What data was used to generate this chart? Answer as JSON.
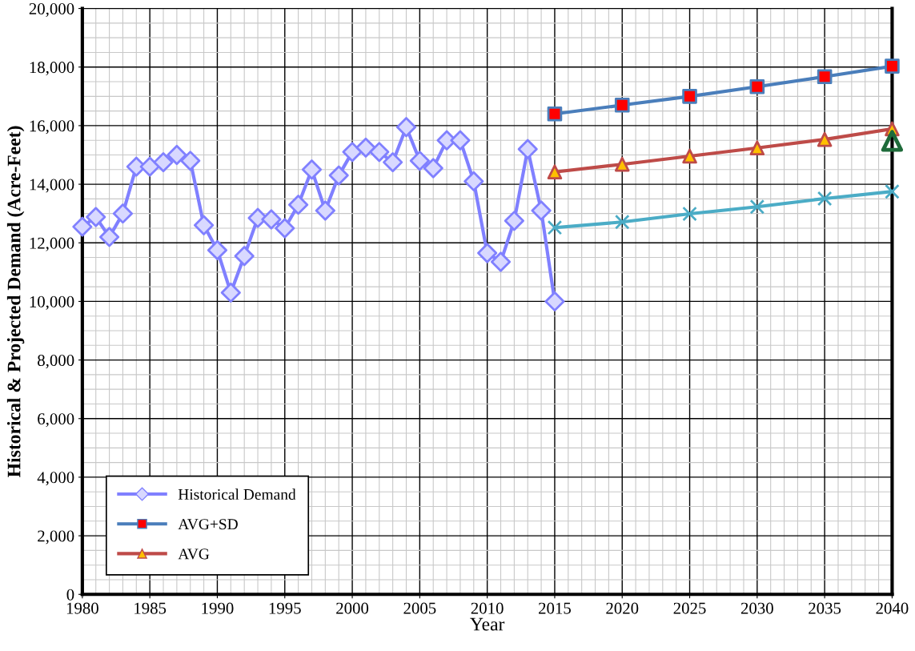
{
  "chart_data": {
    "type": "line",
    "xlabel": "Year",
    "ylabel": "Historical & Projected Demand (Acre-Feet)",
    "xlim": [
      1980,
      2040
    ],
    "xticks": [
      1980,
      1985,
      1990,
      1995,
      2000,
      2005,
      2010,
      2015,
      2020,
      2025,
      2030,
      2035,
      2040
    ],
    "ylim": [
      0,
      20000
    ],
    "yticks": [
      0,
      {
        "value": 2000,
        "label": "2,000"
      },
      {
        "value": 4000,
        "label": "4,000"
      },
      {
        "value": 6000,
        "label": "6,000"
      },
      {
        "value": 8000,
        "label": "8,000"
      },
      {
        "value": 10000,
        "label": "10,000"
      },
      {
        "value": 12000,
        "label": "12,000"
      },
      {
        "value": 14000,
        "label": "14,000"
      },
      {
        "value": 16000,
        "label": "16,000"
      },
      {
        "value": 18000,
        "label": "18,000"
      },
      {
        "value": 20000,
        "label": "20,000"
      }
    ],
    "grid": true,
    "legend": "bottom left",
    "series": [
      {
        "name": "Historical Demand",
        "color": "#8080ff",
        "marker": "diamond",
        "colors": [
          "#d8d8ff",
          "#d8d8ff",
          "#d8d8ff",
          "#d8d8ff",
          "#d8d8ff",
          "#d8d8ff",
          "#d8d8ff",
          "#d8d8ff",
          "#d8d8ff",
          "#d8d8ff",
          "#d8d8ff",
          "#d8d8ff",
          "#d8d8ff",
          "#d8d8ff",
          "#d8d8ff",
          "#d8d8ff",
          "#d8d8ff",
          "#d8d8ff",
          "#d8d8ff",
          "#d8d8ff",
          "#d8d8ff",
          "#d8d8ff",
          "#d8d8ff",
          "#d8d8ff",
          "#d8d8ff",
          "#d8d8ff",
          "#d8d8ff",
          "#d8d8ff",
          "#d8d8ff",
          "#d8d8ff",
          "#d8d8ff",
          "#d8d8ff",
          "#d8d8ff",
          "#d8d8ff",
          "#d8d8ff",
          "#d8d8ff"
        ],
        "x": [
          1980,
          1981,
          1982,
          1983,
          1984,
          1985,
          1986,
          1987,
          1988,
          1989,
          1990,
          1991,
          1992,
          1993,
          1994,
          1995,
          1996,
          1997,
          1998,
          1999,
          2000,
          2001,
          2002,
          2003,
          2004,
          2005,
          2006,
          2007,
          2008,
          2009,
          2010,
          2011,
          2012,
          2013,
          2014,
          2015
        ],
        "values": [
          12550,
          12880,
          12200,
          13000,
          14600,
          14600,
          14750,
          15000,
          14800,
          12600,
          11750,
          10300,
          11550,
          12850,
          12800,
          12500,
          13300,
          14500,
          13100,
          14300,
          15100,
          15250,
          15100,
          14750,
          15950,
          14800,
          14550,
          15500,
          15500,
          14100,
          11650,
          11350,
          12750,
          15200,
          13100,
          10000
        ]
      },
      {
        "name": "AVG+SD",
        "color": "#4a7ebb",
        "marker": "square",
        "colors": [
          "#ff0000",
          "#ff0000",
          "#ff0000",
          "#ff0000",
          "#ff0000",
          "#ff0000"
        ],
        "x": [
          2015,
          2020,
          2025,
          2030,
          2035,
          2040
        ],
        "values": [
          16400,
          16700,
          17000,
          17330,
          17670,
          18030
        ]
      },
      {
        "name": "AVG",
        "color": "#be4b48",
        "marker": "triangle",
        "colors": [
          "#ffc000",
          "#ffc000",
          "#ffc000",
          "#ffc000",
          "#ffc000",
          "#ffc000"
        ],
        "x": [
          2015,
          2020,
          2025,
          2030,
          2035,
          2040
        ],
        "values": [
          14420,
          14680,
          14960,
          15240,
          15530,
          15890
        ]
      },
      {
        "color": "#4bacc6",
        "marker": "cross",
        "x": [
          2015,
          2020,
          2025,
          2030,
          2035,
          2040
        ],
        "values": [
          12520,
          12710,
          12990,
          13230,
          13510,
          13750
        ]
      },
      {
        "type": "scatter",
        "color": "#1e6b3a",
        "marker": "triangle",
        "x": [
          2040
        ],
        "values": [
          15480
        ]
      }
    ]
  }
}
